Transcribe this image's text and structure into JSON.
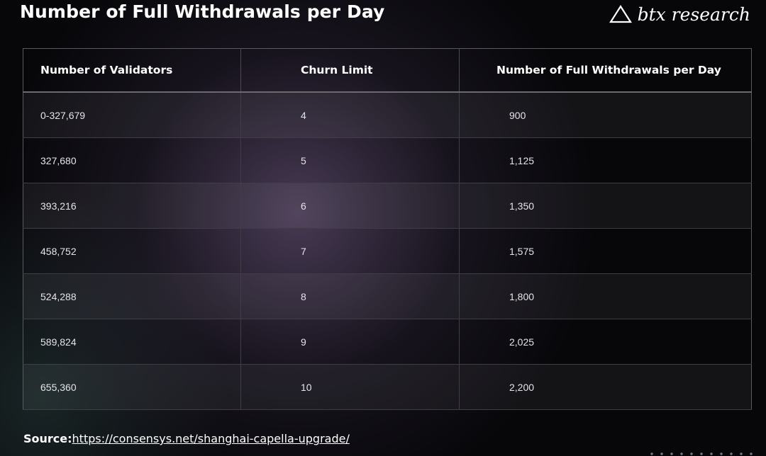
{
  "title": "Number of Full Withdrawals per Day",
  "logo": {
    "text": "btx research",
    "icon": "triangle-icon"
  },
  "chart_data": {
    "type": "table",
    "columns": [
      "Number of Validators",
      "Churn Limit",
      "Number of Full Withdrawals per Day"
    ],
    "rows": [
      [
        "0-327,679",
        "4",
        "900"
      ],
      [
        "327,680",
        "5",
        "1,125"
      ],
      [
        "393,216",
        "6",
        "1,350"
      ],
      [
        "458,752",
        "7",
        "1,575"
      ],
      [
        "524,288",
        "8",
        "1,800"
      ],
      [
        "589,824",
        "9",
        "2,025"
      ],
      [
        "655,360",
        "10",
        "2,200"
      ]
    ]
  },
  "source": {
    "label": "Source:",
    "url": "https://consensys.net/shanghai-capella-upgrade/"
  },
  "colors": {
    "background": "#07070a",
    "accent_glow": "#7d6491",
    "text": "#ffffff",
    "grid": "#5a5a60"
  }
}
